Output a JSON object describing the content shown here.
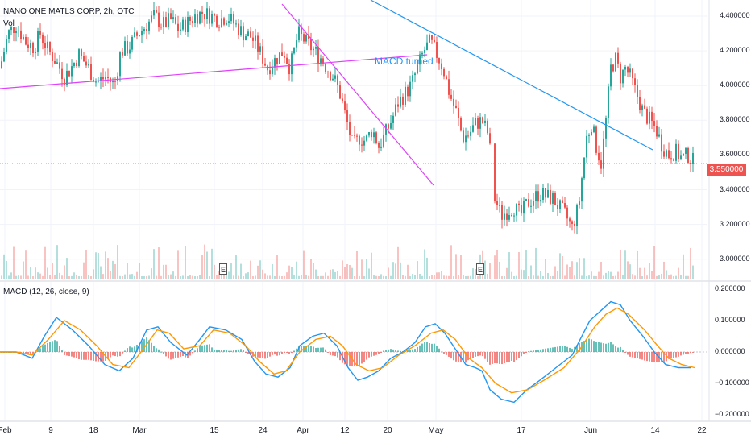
{
  "chart_data": [
    {
      "type": "candlestick",
      "title": "NANO ONE MATLS CORP, 2h, OTC",
      "volume_label": "Vol",
      "last_price": "3.550000",
      "ylim": [
        2.95,
        4.45
      ],
      "y_ticks": [
        "4.400000",
        "4.200000",
        "4.000000",
        "3.800000",
        "3.600000",
        "3.400000",
        "3.200000",
        "3.000000"
      ],
      "x_ticks": [
        "Feb",
        "9",
        "18",
        "Mar",
        "15",
        "24",
        "Apr",
        "12",
        "20",
        "May",
        "17",
        "Jun",
        "14",
        "22"
      ],
      "closing_price_path": [
        [
          0,
          4.1
        ],
        [
          10,
          4.3
        ],
        [
          20,
          4.35
        ],
        [
          32,
          4.25
        ],
        [
          42,
          4.22
        ],
        [
          50,
          4.3
        ],
        [
          60,
          4.2
        ],
        [
          68,
          4.15
        ],
        [
          80,
          4.05
        ],
        [
          88,
          4.1
        ],
        [
          98,
          4.18
        ],
        [
          110,
          4.1
        ],
        [
          120,
          4.02
        ],
        [
          132,
          4.05
        ],
        [
          142,
          4.0
        ],
        [
          150,
          4.2
        ],
        [
          160,
          4.22
        ],
        [
          172,
          4.3
        ],
        [
          182,
          4.35
        ],
        [
          192,
          4.4
        ],
        [
          202,
          4.35
        ],
        [
          212,
          4.38
        ],
        [
          222,
          4.32
        ],
        [
          232,
          4.36
        ],
        [
          242,
          4.4
        ],
        [
          252,
          4.42
        ],
        [
          262,
          4.4
        ],
        [
          272,
          4.38
        ],
        [
          282,
          4.4
        ],
        [
          292,
          4.35
        ],
        [
          302,
          4.3
        ],
        [
          312,
          4.28
        ],
        [
          322,
          4.2
        ],
        [
          332,
          4.1
        ],
        [
          342,
          4.15
        ],
        [
          352,
          4.2
        ],
        [
          360,
          4.1
        ],
        [
          370,
          4.3
        ],
        [
          380,
          4.25
        ],
        [
          390,
          4.2
        ],
        [
          398,
          4.16
        ],
        [
          406,
          4.1
        ],
        [
          414,
          4.05
        ],
        [
          422,
          3.95
        ],
        [
          430,
          3.8
        ],
        [
          438,
          3.65
        ],
        [
          446,
          3.7
        ],
        [
          454,
          3.68
        ],
        [
          462,
          3.75
        ],
        [
          470,
          3.65
        ],
        [
          478,
          3.72
        ],
        [
          486,
          3.8
        ],
        [
          494,
          3.9
        ],
        [
          502,
          3.95
        ],
        [
          510,
          4.0
        ],
        [
          518,
          4.1
        ],
        [
          526,
          4.2
        ],
        [
          534,
          4.25
        ],
        [
          542,
          4.18
        ],
        [
          550,
          4.1
        ],
        [
          558,
          3.95
        ],
        [
          566,
          3.85
        ],
        [
          574,
          3.7
        ],
        [
          582,
          3.72
        ],
        [
          590,
          3.78
        ],
        [
          598,
          3.8
        ],
        [
          606,
          3.72
        ],
        [
          614,
          3.35
        ],
        [
          622,
          3.25
        ],
        [
          630,
          3.28
        ],
        [
          638,
          3.3
        ],
        [
          646,
          3.25
        ],
        [
          654,
          3.32
        ],
        [
          662,
          3.35
        ],
        [
          670,
          3.38
        ],
        [
          678,
          3.36
        ],
        [
          686,
          3.35
        ],
        [
          694,
          3.3
        ],
        [
          702,
          3.25
        ],
        [
          710,
          3.18
        ],
        [
          718,
          3.3
        ],
        [
          724,
          3.55
        ],
        [
          728,
          3.7
        ],
        [
          734,
          3.78
        ],
        [
          740,
          3.65
        ],
        [
          746,
          3.55
        ],
        [
          752,
          3.8
        ],
        [
          758,
          4.1
        ],
        [
          764,
          4.15
        ],
        [
          770,
          4.05
        ],
        [
          776,
          4.1
        ],
        [
          782,
          4.05
        ],
        [
          790,
          3.95
        ],
        [
          798,
          3.85
        ],
        [
          806,
          3.8
        ],
        [
          814,
          3.75
        ],
        [
          822,
          3.65
        ],
        [
          830,
          3.6
        ],
        [
          838,
          3.62
        ],
        [
          846,
          3.58
        ],
        [
          854,
          3.6
        ],
        [
          862,
          3.55
        ]
      ],
      "trendlines": [
        {
          "color": "#e040fb",
          "from": [
            "Feb",
            4.0
          ],
          "to": [
            "Apr 28",
            4.19
          ]
        },
        {
          "color": "#e040fb",
          "from": [
            "Mar 27",
            4.34
          ],
          "to": [
            "May 3",
            3.48
          ]
        },
        {
          "color": "#2196f3",
          "from": [
            "Apr 16",
            4.48
          ],
          "to": [
            "Jun 16",
            3.66
          ]
        }
      ],
      "annotation": "MACD turned",
      "earnings_markers": [
        "E",
        "E"
      ]
    },
    {
      "type": "line",
      "title": "MACD (12, 26, close, 9)",
      "ylim": [
        -0.22,
        0.22
      ],
      "y_ticks": [
        "0.200000",
        "0.100000",
        "0.000000",
        "−0.100000",
        "−0.200000"
      ],
      "series": [
        {
          "color": "#2196f3",
          "values": [
            [
              0,
              0
            ],
            [
              20,
              0
            ],
            [
              40,
              -0.02
            ],
            [
              55,
              0.05
            ],
            [
              70,
              0.11
            ],
            [
              90,
              0.07
            ],
            [
              110,
              0.02
            ],
            [
              130,
              -0.04
            ],
            [
              148,
              -0.06
            ],
            [
              165,
              -0.02
            ],
            [
              182,
              0.07
            ],
            [
              196,
              0.08
            ],
            [
              212,
              0.03
            ],
            [
              232,
              -0.01
            ],
            [
              248,
              0.04
            ],
            [
              260,
              0.08
            ],
            [
              280,
              0.07
            ],
            [
              300,
              0.04
            ],
            [
              316,
              -0.03
            ],
            [
              330,
              -0.07
            ],
            [
              345,
              -0.08
            ],
            [
              360,
              -0.05
            ],
            [
              372,
              0.02
            ],
            [
              388,
              0.05
            ],
            [
              402,
              0.06
            ],
            [
              418,
              0.02
            ],
            [
              432,
              -0.05
            ],
            [
              444,
              -0.09
            ],
            [
              456,
              -0.08
            ],
            [
              470,
              -0.06
            ],
            [
              485,
              -0.02
            ],
            [
              500,
              0.0
            ],
            [
              515,
              0.03
            ],
            [
              528,
              0.08
            ],
            [
              540,
              0.09
            ],
            [
              552,
              0.06
            ],
            [
              565,
              0.01
            ],
            [
              578,
              -0.04
            ],
            [
              590,
              -0.05
            ],
            [
              598,
              -0.06
            ],
            [
              608,
              -0.12
            ],
            [
              622,
              -0.15
            ],
            [
              638,
              -0.16
            ],
            [
              654,
              -0.12
            ],
            [
              670,
              -0.09
            ],
            [
              690,
              -0.05
            ],
            [
              710,
              -0.01
            ],
            [
              720,
              0.04
            ],
            [
              732,
              0.1
            ],
            [
              745,
              0.13
            ],
            [
              758,
              0.16
            ],
            [
              770,
              0.15
            ],
            [
              782,
              0.1
            ],
            [
              798,
              0.05
            ],
            [
              812,
              0.0
            ],
            [
              826,
              -0.04
            ],
            [
              842,
              -0.05
            ],
            [
              858,
              -0.05
            ]
          ]
        },
        {
          "color": "#ff9800",
          "values": [
            [
              0,
              0
            ],
            [
              20,
              0
            ],
            [
              40,
              -0.01
            ],
            [
              60,
              0.04
            ],
            [
              80,
              0.1
            ],
            [
              100,
              0.07
            ],
            [
              120,
              0.02
            ],
            [
              140,
              -0.04
            ],
            [
              160,
              -0.05
            ],
            [
              178,
              0.01
            ],
            [
              195,
              0.07
            ],
            [
              210,
              0.06
            ],
            [
              228,
              0.01
            ],
            [
              248,
              0.02
            ],
            [
              265,
              0.07
            ],
            [
              285,
              0.06
            ],
            [
              305,
              0.02
            ],
            [
              322,
              -0.03
            ],
            [
              340,
              -0.07
            ],
            [
              355,
              -0.06
            ],
            [
              372,
              0.0
            ],
            [
              392,
              0.04
            ],
            [
              410,
              0.05
            ],
            [
              425,
              0.02
            ],
            [
              442,
              -0.04
            ],
            [
              458,
              -0.06
            ],
            [
              475,
              -0.05
            ],
            [
              495,
              -0.01
            ],
            [
              515,
              0.02
            ],
            [
              535,
              0.06
            ],
            [
              550,
              0.07
            ],
            [
              565,
              0.04
            ],
            [
              582,
              -0.02
            ],
            [
              598,
              -0.05
            ],
            [
              615,
              -0.1
            ],
            [
              635,
              -0.13
            ],
            [
              655,
              -0.12
            ],
            [
              675,
              -0.09
            ],
            [
              700,
              -0.05
            ],
            [
              720,
              0.01
            ],
            [
              738,
              0.08
            ],
            [
              752,
              0.12
            ],
            [
              766,
              0.14
            ],
            [
              780,
              0.12
            ],
            [
              800,
              0.07
            ],
            [
              816,
              0.02
            ],
            [
              830,
              -0.02
            ],
            [
              846,
              -0.04
            ],
            [
              862,
              -0.05
            ]
          ]
        }
      ]
    }
  ]
}
